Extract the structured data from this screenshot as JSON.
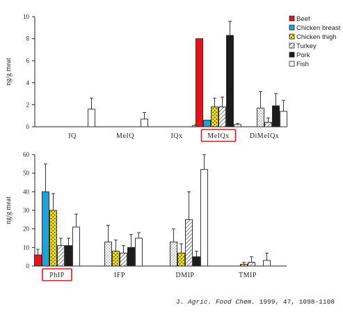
{
  "chart_data": [
    {
      "type": "bar",
      "ylabel": "ng/g meat",
      "ylim": [
        0,
        10
      ],
      "yticks": [
        0,
        2,
        4,
        6,
        8,
        10
      ],
      "categories": [
        "IQ",
        "MeIQ",
        "IQx",
        "MeIQx",
        "DiMeIQx"
      ],
      "highlighted_category": "MeIQx",
      "legend_position": "right",
      "series": [
        {
          "name": "Beef",
          "values": [
            0,
            0,
            0,
            8.0,
            0
          ],
          "errors": [
            0,
            0,
            0,
            0,
            0
          ]
        },
        {
          "name": "Chicken breast",
          "values": [
            0,
            0,
            0,
            0.6,
            0
          ],
          "errors": [
            0,
            0,
            0,
            0,
            0
          ]
        },
        {
          "name": "Chicken thigh",
          "values": [
            0,
            0,
            0,
            1.8,
            1.7
          ],
          "errors": [
            0,
            0,
            0,
            0.8,
            1.5
          ]
        },
        {
          "name": "Turkey",
          "values": [
            0,
            0,
            0,
            1.8,
            0.4
          ],
          "errors": [
            0,
            0,
            0,
            0.9,
            0.4
          ]
        },
        {
          "name": "Pork",
          "values": [
            0,
            0,
            0,
            8.3,
            1.9
          ],
          "errors": [
            0,
            0,
            0,
            1.3,
            1.1
          ]
        },
        {
          "name": "Fish",
          "values": [
            1.6,
            0.7,
            0.1,
            0.2,
            1.4
          ],
          "errors": [
            1.0,
            0.6,
            0.1,
            0.1,
            1.0
          ]
        }
      ]
    },
    {
      "type": "bar",
      "ylabel": "ng/g meat",
      "ylim": [
        0,
        60
      ],
      "yticks": [
        0,
        10,
        20,
        30,
        40,
        50,
        60
      ],
      "categories": [
        "PhIP",
        "IFP",
        "DMIP",
        "TMIP"
      ],
      "highlighted_category": "PhIP",
      "series": [
        {
          "name": "Beef",
          "values": [
            6,
            0,
            0,
            0
          ],
          "errors": [
            3,
            0,
            0,
            0
          ]
        },
        {
          "name": "Chicken breast",
          "values": [
            40,
            13,
            13,
            0
          ],
          "errors": [
            15,
            9,
            7,
            0
          ]
        },
        {
          "name": "Chicken thigh",
          "values": [
            30,
            8,
            7,
            1
          ],
          "errors": [
            9,
            6,
            5,
            1
          ]
        },
        {
          "name": "Turkey",
          "values": [
            11,
            7,
            25,
            2
          ],
          "errors": [
            4,
            4,
            15,
            3
          ]
        },
        {
          "name": "Pork",
          "values": [
            11,
            10,
            5,
            0
          ],
          "errors": [
            4,
            7,
            3,
            0
          ]
        },
        {
          "name": "Fish",
          "values": [
            21,
            15,
            52,
            3
          ],
          "errors": [
            7,
            3,
            8,
            4
          ]
        }
      ]
    }
  ],
  "series_colors": {
    "Beef": "#e3141e",
    "Chicken breast": "#1aa3e0",
    "Chicken thigh": "#f2e21e",
    "Turkey": "#ffffff",
    "Pork": "#1c1c1c",
    "Fish": "#ffffff"
  },
  "highlight_color": "#e3141e",
  "citation": {
    "prefix": "J. ",
    "journal": "Agric. Food Chem.",
    "details": " 1999, 47, 1098-1108"
  }
}
